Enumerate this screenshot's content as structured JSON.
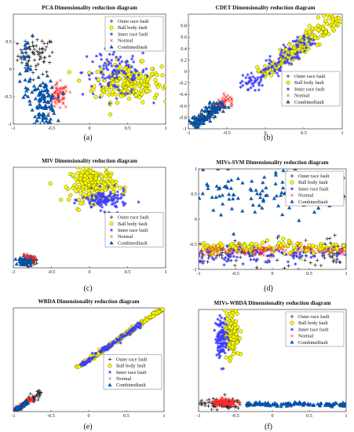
{
  "colors": {
    "outer": "#1a1a1a",
    "ball_fill": "#ffff00",
    "ball_edge": "#6b6b00",
    "inner": "#3c3cff",
    "normal": "#ff2a2a",
    "combined": "#0060c0"
  },
  "legend_labels": [
    "Outer race fault",
    "Ball body fault",
    "Inner race fault",
    "Normal",
    "Combinedfault"
  ],
  "chart_data": [
    {
      "id": "a",
      "type": "scatter",
      "caption": "(a)",
      "title": "PCA Dimensionality reduction diagram",
      "xlim": [
        -1,
        1
      ],
      "ylim": [
        -1,
        1
      ],
      "xticks": [
        -1,
        -0.5,
        0,
        0.5,
        1
      ],
      "yticks": [
        0.5,
        0,
        -0.5,
        -1
      ],
      "xtick_labels": [
        "-1",
        "-0.5",
        "0",
        "0.5",
        "1"
      ],
      "ytick_labels": [
        "0.5",
        "0",
        "-0.5",
        "-1"
      ],
      "legend": "top-right",
      "series": [
        {
          "name": "Outer race fault",
          "clusters": [
            {
              "cx": -0.7,
              "cy": 0.25,
              "sx": 0.12,
              "sy": 0.17,
              "n": 70
            }
          ]
        },
        {
          "name": "Ball body fault",
          "clusters": [
            {
              "cx": 0.5,
              "cy": -0.25,
              "sx": 0.22,
              "sy": 0.17,
              "n": 200
            }
          ]
        },
        {
          "name": "Inner race fault",
          "clusters": [
            {
              "cx": 0.35,
              "cy": -0.05,
              "sx": 0.22,
              "sy": 0.22,
              "n": 120
            }
          ]
        },
        {
          "name": "Normal",
          "clusters": [
            {
              "cx": -0.4,
              "cy": -0.5,
              "sx": 0.06,
              "sy": 0.12,
              "n": 70
            }
          ]
        },
        {
          "name": "Combinedfault",
          "clusters": [
            {
              "cx": -0.6,
              "cy": -0.6,
              "sx": 0.08,
              "sy": 0.2,
              "n": 110
            },
            {
              "cx": -0.83,
              "cy": -0.1,
              "sx": 0.04,
              "sy": 0.35,
              "n": 30
            }
          ]
        }
      ]
    },
    {
      "id": "b",
      "type": "scatter",
      "caption": "(b)",
      "title": "CDET Dimensionality reduction diagram",
      "xlim": [
        -1,
        1
      ],
      "ylim": [
        -1,
        1
      ],
      "xticks": [
        -1,
        -0.5,
        0,
        0.5,
        1
      ],
      "yticks": [
        0.8,
        0.6,
        0.4,
        0.2,
        0,
        -0.2,
        -0.4,
        -0.6,
        -0.8,
        -1
      ],
      "xtick_labels": [
        "-1",
        "-0.5",
        "0",
        "0.5",
        "1"
      ],
      "ytick_labels": [
        "0.8",
        "0.6",
        "0.4",
        "0.2",
        "0",
        "-0.2",
        "-0.4",
        "-0.6",
        "-0.8",
        "-1"
      ],
      "legend": "right",
      "series": [
        {
          "name": "Outer race fault",
          "line": {
            "from": -0.95,
            "to": -0.6,
            "spread": 0.04,
            "n": 80
          }
        },
        {
          "name": "Ball body fault",
          "line": {
            "from": -0.05,
            "to": 0.95,
            "spread": 0.07,
            "n": 170
          }
        },
        {
          "name": "Inner race fault",
          "line": {
            "from": -0.3,
            "to": 0.6,
            "spread": 0.08,
            "n": 130
          }
        },
        {
          "name": "Normal",
          "line": {
            "from": -0.65,
            "to": -0.45,
            "spread": 0.05,
            "n": 50
          }
        },
        {
          "name": "Combinedfault",
          "line": {
            "from": -0.95,
            "to": -0.55,
            "spread": 0.05,
            "n": 90
          }
        }
      ]
    },
    {
      "id": "c",
      "type": "scatter",
      "caption": "(c)",
      "title": "MIV Dimensionality reduction diagram",
      "xlim": [
        -1,
        1
      ],
      "ylim": [
        -1,
        1
      ],
      "xticks": [
        -1,
        -0.5,
        0,
        0.5,
        1
      ],
      "yticks": [],
      "xtick_labels": [
        "-1",
        "-0.5",
        "0",
        "0.5",
        "1"
      ],
      "ytick_labels": [],
      "legend": "right",
      "series": [
        {
          "name": "Outer race fault",
          "clusters": [
            {
              "cx": -0.78,
              "cy": -0.85,
              "sx": 0.05,
              "sy": 0.05,
              "n": 45
            }
          ]
        },
        {
          "name": "Ball body fault",
          "clusters": [
            {
              "cx": 0.05,
              "cy": 0.65,
              "sx": 0.15,
              "sy": 0.17,
              "n": 190
            }
          ]
        },
        {
          "name": "Inner race fault",
          "clusters": [
            {
              "cx": 0.2,
              "cy": 0.35,
              "sx": 0.15,
              "sy": 0.1,
              "n": 120
            }
          ]
        },
        {
          "name": "Normal",
          "clusters": [
            {
              "cx": -0.8,
              "cy": -0.83,
              "sx": 0.04,
              "sy": 0.04,
              "n": 50
            }
          ]
        },
        {
          "name": "Combinedfault",
          "clusters": [
            {
              "cx": -0.85,
              "cy": -0.88,
              "sx": 0.04,
              "sy": 0.04,
              "n": 60
            }
          ]
        }
      ]
    },
    {
      "id": "d",
      "type": "scatter",
      "caption": "(d)",
      "title": "MIVs-SVM Dimensionality reduction diagram",
      "xlim": [
        -1,
        1
      ],
      "ylim": [
        -1,
        1
      ],
      "xticks": [
        -1,
        -0.5,
        0,
        0.5,
        1
      ],
      "yticks": [
        1,
        0.5,
        0,
        -0.5,
        -1
      ],
      "xtick_labels": [
        "-1",
        "-0.5",
        "0",
        "0.5",
        "1"
      ],
      "ytick_labels": [
        "1",
        "0.5",
        "0",
        "-0.5",
        "-1"
      ],
      "legend": "top-right",
      "series": [
        {
          "name": "Outer race fault",
          "band": {
            "y": -0.7,
            "sy": 0.15,
            "n": 120
          }
        },
        {
          "name": "Ball body fault",
          "band": {
            "y": -0.58,
            "sy": 0.06,
            "n": 140
          }
        },
        {
          "name": "Inner race fault",
          "band": {
            "y": -0.7,
            "sy": 0.08,
            "n": 100
          }
        },
        {
          "name": "Normal",
          "band": {
            "y": -0.62,
            "sy": 0.05,
            "n": 100
          }
        },
        {
          "name": "Combinedfault",
          "band": {
            "y": 0.55,
            "sy": 0.25,
            "n": 110
          }
        }
      ]
    },
    {
      "id": "e",
      "type": "scatter",
      "caption": "(e)",
      "title": "WBDA Dimensionality reduction diagram",
      "xlim": [
        -1,
        1
      ],
      "ylim": [
        -1,
        1
      ],
      "xticks": [
        -1,
        -0.5,
        0,
        0.5,
        1
      ],
      "yticks": [],
      "xtick_labels": [
        "-1",
        "-0.5",
        "0",
        "0.5",
        "1"
      ],
      "ytick_labels": [],
      "legend": "right",
      "series": [
        {
          "name": "Outer race fault",
          "line": {
            "from": -0.82,
            "to": -0.62,
            "spread": 0.04,
            "n": 40
          }
        },
        {
          "name": "Ball body fault",
          "line": {
            "from": -0.15,
            "to": 1.0,
            "spread": 0.015,
            "n": 170
          }
        },
        {
          "name": "Inner race fault",
          "line": {
            "from": -0.1,
            "to": 0.7,
            "spread": 0.02,
            "n": 130
          }
        },
        {
          "name": "Normal",
          "line": {
            "from": -0.97,
            "to": -0.75,
            "spread": 0.02,
            "n": 70
          }
        },
        {
          "name": "Combinedfault",
          "line": {
            "from": -0.97,
            "to": -0.82,
            "spread": 0.015,
            "n": 60
          }
        }
      ]
    },
    {
      "id": "f",
      "type": "scatter",
      "caption": "(f)",
      "title": "MIVs-WBDA Dimensionality reduction diagram",
      "xlim": [
        -1,
        1
      ],
      "ylim": [
        -1,
        1
      ],
      "xticks": [
        -1,
        -0.5,
        0,
        0.5,
        1
      ],
      "yticks": [],
      "xtick_labels": [
        "-1",
        "-0.5",
        "0",
        "0.5",
        "1"
      ],
      "ytick_labels": [],
      "legend": "top-right",
      "series": [
        {
          "name": "Outer race fault",
          "clusters": [
            {
              "cx": -0.7,
              "cy": -0.85,
              "sx": 0.15,
              "sy": 0.05,
              "n": 90
            }
          ]
        },
        {
          "name": "Ball body fault",
          "clusters": [
            {
              "cx": -0.55,
              "cy": 0.55,
              "sx": 0.05,
              "sy": 0.25,
              "n": 120
            }
          ]
        },
        {
          "name": "Inner race fault",
          "clusters": [
            {
              "cx": -0.69,
              "cy": 0.45,
              "sx": 0.04,
              "sy": 0.2,
              "n": 110
            }
          ]
        },
        {
          "name": "Normal",
          "clusters": [
            {
              "cx": -0.65,
              "cy": -0.82,
              "sx": 0.08,
              "sy": 0.04,
              "n": 110
            }
          ]
        },
        {
          "name": "Combinedfault",
          "band": {
            "y": -0.86,
            "sy": 0.02,
            "xmin": -0.35,
            "xmax": 1.0,
            "n": 120
          }
        }
      ]
    }
  ]
}
